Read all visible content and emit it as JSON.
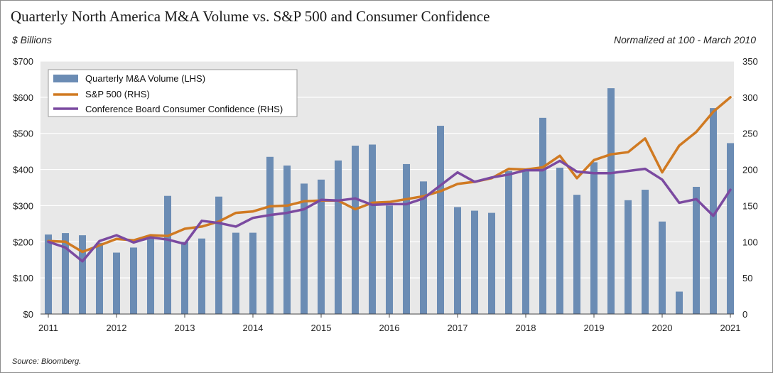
{
  "header": {
    "title": "Quarterly North America M&A Volume vs. S&P 500 and Consumer Confidence",
    "left_unit": "$ Billions",
    "right_note": "Normalized at 100 - March 2010"
  },
  "footer": {
    "source": "Source: Bloomberg."
  },
  "colors": {
    "bars": "#6b8cb4",
    "sp500": "#d07a22",
    "confidence": "#7b4aa0",
    "plot_bg": "#e8e8e8",
    "grid": "#ffffff"
  },
  "chart_data": {
    "type": "bar",
    "legend_placement": "top-left",
    "grid": true,
    "legend": [
      {
        "label": "Quarterly M&A Volume (LHS)",
        "kind": "bar",
        "color": "#6b8cb4"
      },
      {
        "label": "S&P 500 (RHS)",
        "kind": "line",
        "color": "#d07a22"
      },
      {
        "label": "Conference Board Consumer Confidence (RHS)",
        "kind": "line",
        "color": "#7b4aa0"
      }
    ],
    "x_tick_labels": [
      "2011",
      "2012",
      "2013",
      "2014",
      "2015",
      "2016",
      "2017",
      "2018",
      "2019",
      "2020",
      "2021"
    ],
    "y_left": {
      "ylim": [
        0,
        700
      ],
      "ticks": [
        "$0",
        "$100",
        "$200",
        "$300",
        "$400",
        "$500",
        "$600",
        "$700"
      ]
    },
    "y_right": {
      "ylim": [
        0,
        350
      ],
      "ticks": [
        "0",
        "50",
        "100",
        "150",
        "200",
        "250",
        "300",
        "350"
      ]
    },
    "categories": [
      "Q1 2011",
      "Q2 2011",
      "Q3 2011",
      "Q4 2011",
      "Q1 2012",
      "Q2 2012",
      "Q3 2012",
      "Q4 2012",
      "Q1 2013",
      "Q2 2013",
      "Q3 2013",
      "Q4 2013",
      "Q1 2014",
      "Q2 2014",
      "Q3 2014",
      "Q4 2014",
      "Q1 2015",
      "Q2 2015",
      "Q3 2015",
      "Q4 2015",
      "Q1 2016",
      "Q2 2016",
      "Q3 2016",
      "Q4 2016",
      "Q1 2017",
      "Q2 2017",
      "Q3 2017",
      "Q4 2017",
      "Q1 2018",
      "Q2 2018",
      "Q3 2018",
      "Q4 2018",
      "Q1 2019",
      "Q2 2019",
      "Q3 2019",
      "Q4 2019",
      "Q1 2020",
      "Q2 2020",
      "Q3 2020",
      "Q4 2020",
      "Q1 2021"
    ],
    "series": [
      {
        "name": "Quarterly M&A Volume (LHS)",
        "axis": "left",
        "type": "bar",
        "values": [
          220,
          224,
          218,
          197,
          170,
          184,
          212,
          327,
          200,
          209,
          325,
          225,
          225,
          435,
          411,
          361,
          372,
          425,
          466,
          469,
          300,
          415,
          367,
          521,
          296,
          286,
          280,
          396,
          395,
          543,
          405,
          330,
          420,
          625,
          315,
          344,
          256,
          62,
          352,
          570,
          473
        ]
      },
      {
        "name": "S&P 500 (RHS)",
        "axis": "right",
        "type": "line",
        "values": [
          101,
          100,
          86,
          95,
          104,
          102,
          109,
          108,
          118,
          121,
          128,
          140,
          142,
          149,
          150,
          156,
          157,
          157,
          145,
          154,
          155,
          159,
          163,
          170,
          180,
          183,
          188,
          201,
          200,
          203,
          219,
          188,
          213,
          221,
          224,
          243,
          196,
          233,
          252,
          280,
          300
        ]
      },
      {
        "name": "Conference Board Consumer Confidence (RHS)",
        "axis": "right",
        "type": "line",
        "values": [
          100,
          92,
          73,
          101,
          109,
          99,
          106,
          103,
          97,
          129,
          126,
          121,
          133,
          137,
          140,
          145,
          158,
          157,
          160,
          151,
          152,
          152,
          160,
          178,
          196,
          183,
          189,
          193,
          199,
          199,
          212,
          197,
          195,
          195,
          198,
          201,
          186,
          154,
          159,
          136,
          172
        ]
      }
    ]
  }
}
